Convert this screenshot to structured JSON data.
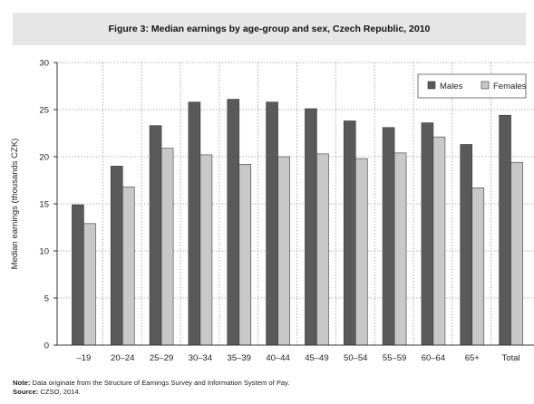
{
  "figure": {
    "label": "Figure 3:",
    "title": "Median earnings by age-group and sex, Czech Republic, 2010"
  },
  "chart_data": {
    "type": "bar",
    "title": "Median earnings by age-group and sex, Czech Republic, 2010",
    "xlabel": "",
    "ylabel": "Median earnings (thousands CZK)",
    "ylim": [
      0,
      30
    ],
    "yticks": [
      0,
      5,
      10,
      15,
      20,
      25,
      30
    ],
    "grid": true,
    "legend_position": "top-right",
    "categories": [
      "–19",
      "20–24",
      "25–29",
      "30–34",
      "35–39",
      "40–44",
      "45–49",
      "50–54",
      "55–59",
      "60–64",
      "65+",
      "Total"
    ],
    "series": [
      {
        "name": "Males",
        "color": "#5a5a5a",
        "values": [
          14.9,
          19.0,
          23.3,
          25.8,
          26.1,
          25.8,
          25.1,
          23.8,
          23.1,
          23.6,
          21.3,
          24.4
        ]
      },
      {
        "name": "Females",
        "color": "#c8c8c8",
        "values": [
          12.9,
          16.8,
          20.9,
          20.2,
          19.2,
          20.0,
          20.3,
          19.8,
          20.4,
          22.1,
          16.7,
          19.4
        ]
      }
    ]
  },
  "note": {
    "label": "Note:",
    "text": "Data originate from the Structure of Earnings Survey and Information System of Pay."
  },
  "source": {
    "label": "Source:",
    "text": "CZSO, 2014."
  }
}
